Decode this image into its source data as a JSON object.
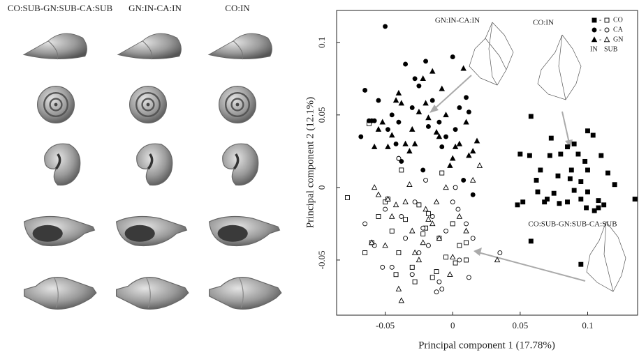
{
  "panel_headers": [
    "CO:SUB-GN:SUB-CA:SUB",
    "GN:IN-CA:IN",
    "CO:IN"
  ],
  "chart_data": {
    "type": "scatter",
    "xlabel": "Principal component 1 (17.78%)",
    "ylabel": "Principal component 2 (12.1%)",
    "xlim": [
      -0.086,
      0.137
    ],
    "ylim": [
      -0.088,
      0.122
    ],
    "xticks": [
      -0.05,
      0,
      0.05,
      0.1
    ],
    "yticks": [
      -0.05,
      0,
      0.05,
      0.1
    ],
    "annotations": [
      "GN:IN-CA:IN",
      "CO:IN",
      "CO:SUB-GN:SUB-CA:SUB"
    ],
    "legend_columns": [
      "IN",
      "SUB"
    ],
    "legend_position": "upper right",
    "color": "#000000",
    "groups": [
      {
        "name": "CO",
        "marker": "square",
        "in": {
          "x": [
            0.058,
            0.073,
            0.085,
            0.09,
            0.1,
            0.104,
            0.08,
            0.093,
            0.05,
            0.057,
            0.072,
            0.11,
            0.098,
            0.088,
            0.065,
            0.1,
            0.115,
            0.062,
            0.078,
            0.095,
            0.087,
            0.12,
            0.09,
            0.063,
            0.075,
            0.1,
            0.07,
            0.095,
            0.108,
            0.085,
            0.112,
            0.048,
            0.052,
            0.068,
            0.079,
            0.135,
            0.099,
            0.105,
            0.108,
            0.058,
            0.095
          ],
          "values": [
            0.049,
            0.034,
            0.028,
            0.03,
            0.039,
            0.036,
            0.023,
            0.023,
            0.023,
            0.022,
            0.022,
            0.022,
            0.018,
            0.012,
            0.012,
            0.012,
            0.01,
            0.005,
            0.008,
            0.004,
            0.006,
            0.002,
            -0.002,
            -0.003,
            -0.004,
            -0.003,
            -0.008,
            -0.008,
            -0.009,
            -0.01,
            -0.012,
            -0.012,
            -0.01,
            -0.01,
            -0.011,
            -0.008,
            -0.014,
            -0.016,
            -0.014,
            -0.037,
            -0.053
          ]
        },
        "sub": {
          "x": [
            -0.078,
            -0.065,
            -0.06,
            -0.055,
            -0.05,
            -0.045,
            -0.04,
            -0.035,
            -0.03,
            -0.025,
            -0.02,
            -0.015,
            -0.01,
            -0.005,
            0,
            0.005,
            0.01,
            -0.062,
            -0.048,
            -0.038,
            -0.028,
            -0.018,
            -0.008,
            0.002,
            -0.042,
            -0.022,
            -0.012,
            0.01
          ],
          "values": [
            -0.007,
            -0.045,
            -0.038,
            -0.02,
            -0.01,
            -0.03,
            -0.045,
            -0.022,
            -0.055,
            -0.012,
            -0.028,
            -0.062,
            -0.035,
            -0.048,
            -0.025,
            -0.04,
            -0.05,
            0.044,
            -0.008,
            0.012,
            -0.065,
            -0.018,
            0.01,
            -0.052,
            -0.06,
            -0.032,
            -0.058,
            -0.038
          ]
        }
      },
      {
        "name": "CA",
        "marker": "circle",
        "in": {
          "x": [
            -0.05,
            -0.065,
            -0.06,
            -0.055,
            -0.045,
            -0.04,
            -0.035,
            -0.03,
            -0.025,
            -0.02,
            -0.015,
            -0.01,
            -0.005,
            0,
            0.005,
            0.01,
            -0.048,
            -0.058,
            -0.042,
            -0.028,
            -0.018,
            -0.008,
            0.002,
            0.012,
            -0.062,
            -0.038,
            -0.022,
            0.008,
            0.015,
            -0.068
          ],
          "values": [
            0.111,
            0.067,
            0.046,
            0.06,
            0.05,
            0.045,
            0.085,
            0.055,
            0.07,
            0.087,
            0.06,
            0.045,
            0.035,
            0.09,
            0.055,
            0.062,
            0.04,
            0.046,
            0.03,
            0.075,
            0.042,
            0.028,
            0.04,
            0.052,
            0.046,
            0.018,
            0.012,
            0.005,
            -0.005,
            0.035
          ]
        },
        "sub": {
          "x": [
            -0.065,
            -0.058,
            -0.05,
            -0.045,
            -0.04,
            -0.035,
            -0.03,
            -0.025,
            -0.02,
            -0.015,
            -0.01,
            -0.005,
            0,
            0.005,
            0.01,
            0.015,
            0.035,
            -0.052,
            -0.038,
            -0.028,
            -0.018,
            -0.008,
            0.002,
            0.012,
            -0.04,
            -0.022,
            -0.012,
            0.004
          ],
          "values": [
            -0.025,
            -0.04,
            -0.015,
            -0.055,
            0.02,
            -0.035,
            -0.06,
            -0.045,
            0.005,
            -0.02,
            -0.065,
            -0.03,
            -0.01,
            -0.05,
            -0.025,
            -0.035,
            -0.045,
            -0.055,
            -0.02,
            -0.01,
            -0.04,
            -0.07,
            0.0,
            -0.062,
            0.02,
            -0.028,
            -0.072,
            -0.015
          ]
        }
      },
      {
        "name": "GN",
        "marker": "triangle",
        "in": {
          "x": [
            -0.058,
            -0.052,
            -0.045,
            -0.04,
            -0.035,
            -0.03,
            -0.025,
            -0.02,
            -0.015,
            -0.01,
            -0.005,
            0,
            0.005,
            0.01,
            0.015,
            -0.055,
            -0.048,
            -0.038,
            -0.028,
            -0.018,
            -0.008,
            0.002,
            0.012,
            -0.022,
            -0.012,
            -0.032,
            0.018,
            -0.042,
            -0.002,
            0.008
          ],
          "values": [
            0.028,
            0.045,
            0.036,
            0.065,
            0.03,
            0.04,
            0.052,
            0.058,
            0.08,
            0.035,
            0.05,
            0.02,
            0.03,
            0.045,
            0.025,
            0.04,
            0.028,
            0.058,
            0.03,
            0.048,
            0.068,
            0.028,
            0.022,
            0.075,
            0.038,
            0.025,
            0.032,
            0.06,
            0.015,
            0.082
          ]
        },
        "sub": {
          "x": [
            -0.06,
            -0.055,
            -0.05,
            -0.045,
            -0.04,
            -0.035,
            -0.03,
            -0.025,
            -0.02,
            -0.015,
            -0.01,
            -0.005,
            0,
            0.005,
            0.01,
            0.02,
            0.033,
            -0.058,
            -0.042,
            -0.032,
            -0.022,
            -0.012,
            -0.002,
            0.015,
            -0.048,
            -0.028,
            -0.038,
            -0.018
          ],
          "values": [
            -0.038,
            -0.005,
            -0.04,
            -0.02,
            -0.07,
            -0.01,
            -0.03,
            -0.05,
            -0.015,
            -0.025,
            -0.035,
            0.0,
            -0.048,
            -0.02,
            -0.03,
            0.015,
            -0.05,
            0.0,
            -0.012,
            0.002,
            -0.038,
            -0.01,
            -0.06,
            0.005,
            -0.008,
            -0.045,
            -0.078,
            -0.022
          ]
        }
      }
    ]
  }
}
